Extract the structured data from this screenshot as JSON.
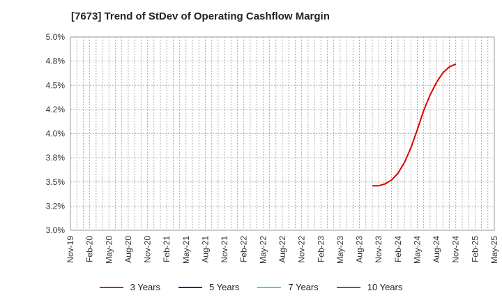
{
  "title": "[7673]  Trend of StDev of Operating Cashflow Margin",
  "chart_data": {
    "type": "line",
    "title": "[7673]  Trend of StDev of Operating Cashflow Margin",
    "xlabel": "",
    "ylabel": "",
    "x_ticks": [
      "Nov-19",
      "Feb-20",
      "May-20",
      "Aug-20",
      "Nov-20",
      "Feb-21",
      "May-21",
      "Aug-21",
      "Nov-21",
      "Feb-22",
      "May-22",
      "Aug-22",
      "Nov-22",
      "Feb-23",
      "May-23",
      "Aug-23",
      "Nov-23",
      "Feb-24",
      "May-24",
      "Aug-24",
      "Nov-24",
      "Feb-25",
      "May-25"
    ],
    "y_ticks": [
      "3.0%",
      "3.2%",
      "3.5%",
      "3.8%",
      "4.0%",
      "4.2%",
      "4.5%",
      "4.8%",
      "5.0%"
    ],
    "ylim": [
      3.0,
      5.0
    ],
    "grid": true,
    "legend_position": "bottom",
    "series": [
      {
        "name": "3 Years",
        "color": "#dd0000",
        "x": [
          "Oct-23",
          "Nov-23",
          "Dec-23",
          "Jan-24",
          "Feb-24",
          "Mar-24",
          "Apr-24",
          "May-24",
          "Jun-24",
          "Jul-24",
          "Aug-24",
          "Sep-24",
          "Oct-24",
          "Nov-24"
        ],
        "values": [
          3.46,
          3.46,
          3.48,
          3.52,
          3.59,
          3.7,
          3.85,
          4.04,
          4.24,
          4.4,
          4.53,
          4.63,
          4.69,
          4.72
        ]
      },
      {
        "name": "5 Years",
        "color": "#0000cc",
        "x": [],
        "values": []
      },
      {
        "name": "7 Years",
        "color": "#00e5ee",
        "x": [],
        "values": []
      },
      {
        "name": "10 Years",
        "color": "#228b22",
        "x": [],
        "values": []
      }
    ]
  }
}
